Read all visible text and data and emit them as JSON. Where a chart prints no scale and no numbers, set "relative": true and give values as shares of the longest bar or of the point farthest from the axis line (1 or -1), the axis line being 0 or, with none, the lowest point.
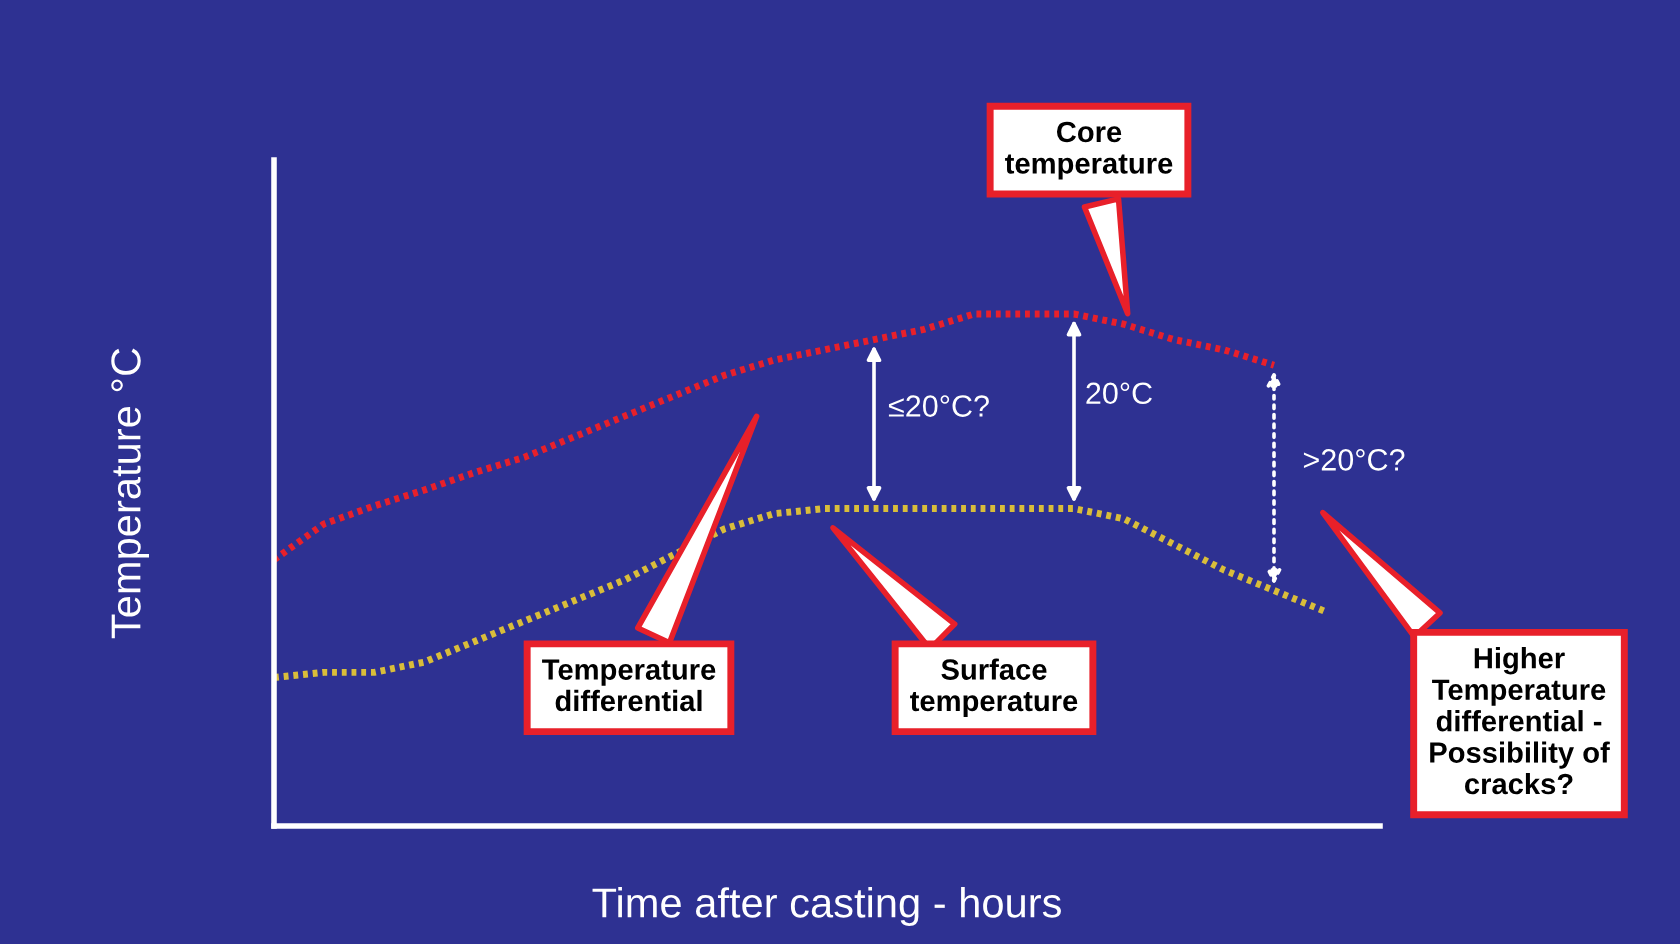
{
  "chart_data": {
    "type": "line",
    "relative": true,
    "xlabel": "Time after casting - hours",
    "ylabel": "Temperature °C",
    "categories": [
      null,
      null,
      null,
      null,
      null,
      null,
      null,
      null,
      null,
      null,
      null,
      null,
      null,
      null,
      null,
      null,
      null,
      null,
      null,
      null,
      null,
      null
    ],
    "series": [
      {
        "color": "#e8202a",
        "values": [
          0.52,
          0.59,
          0.625,
          0.656,
          0.69,
          0.72,
          0.76,
          0.8,
          0.84,
          0.88,
          0.91,
          0.93,
          0.95,
          0.97,
          1.0,
          1.0,
          1.0,
          0.98,
          0.95,
          0.93,
          0.9,
          null
        ]
      },
      {
        "color": "#d9bd3a",
        "values": [
          0.29,
          0.3,
          0.3,
          0.32,
          0.36,
          0.4,
          0.44,
          0.48,
          0.53,
          0.58,
          0.61,
          0.62,
          0.62,
          0.62,
          0.62,
          0.62,
          0.62,
          0.6,
          0.55,
          0.5,
          0.46,
          0.42
        ]
      }
    ],
    "line_style": "dotted",
    "marker": "none",
    "annotations": [
      "Core\ntemperature",
      "Temperature\ndifferential",
      "Surface\ntemperature",
      "Higher\nTemperature\ndifferential -\nPossibility of\ncracks?",
      "≤20°C?",
      "20°C",
      ">20°C?"
    ]
  }
}
